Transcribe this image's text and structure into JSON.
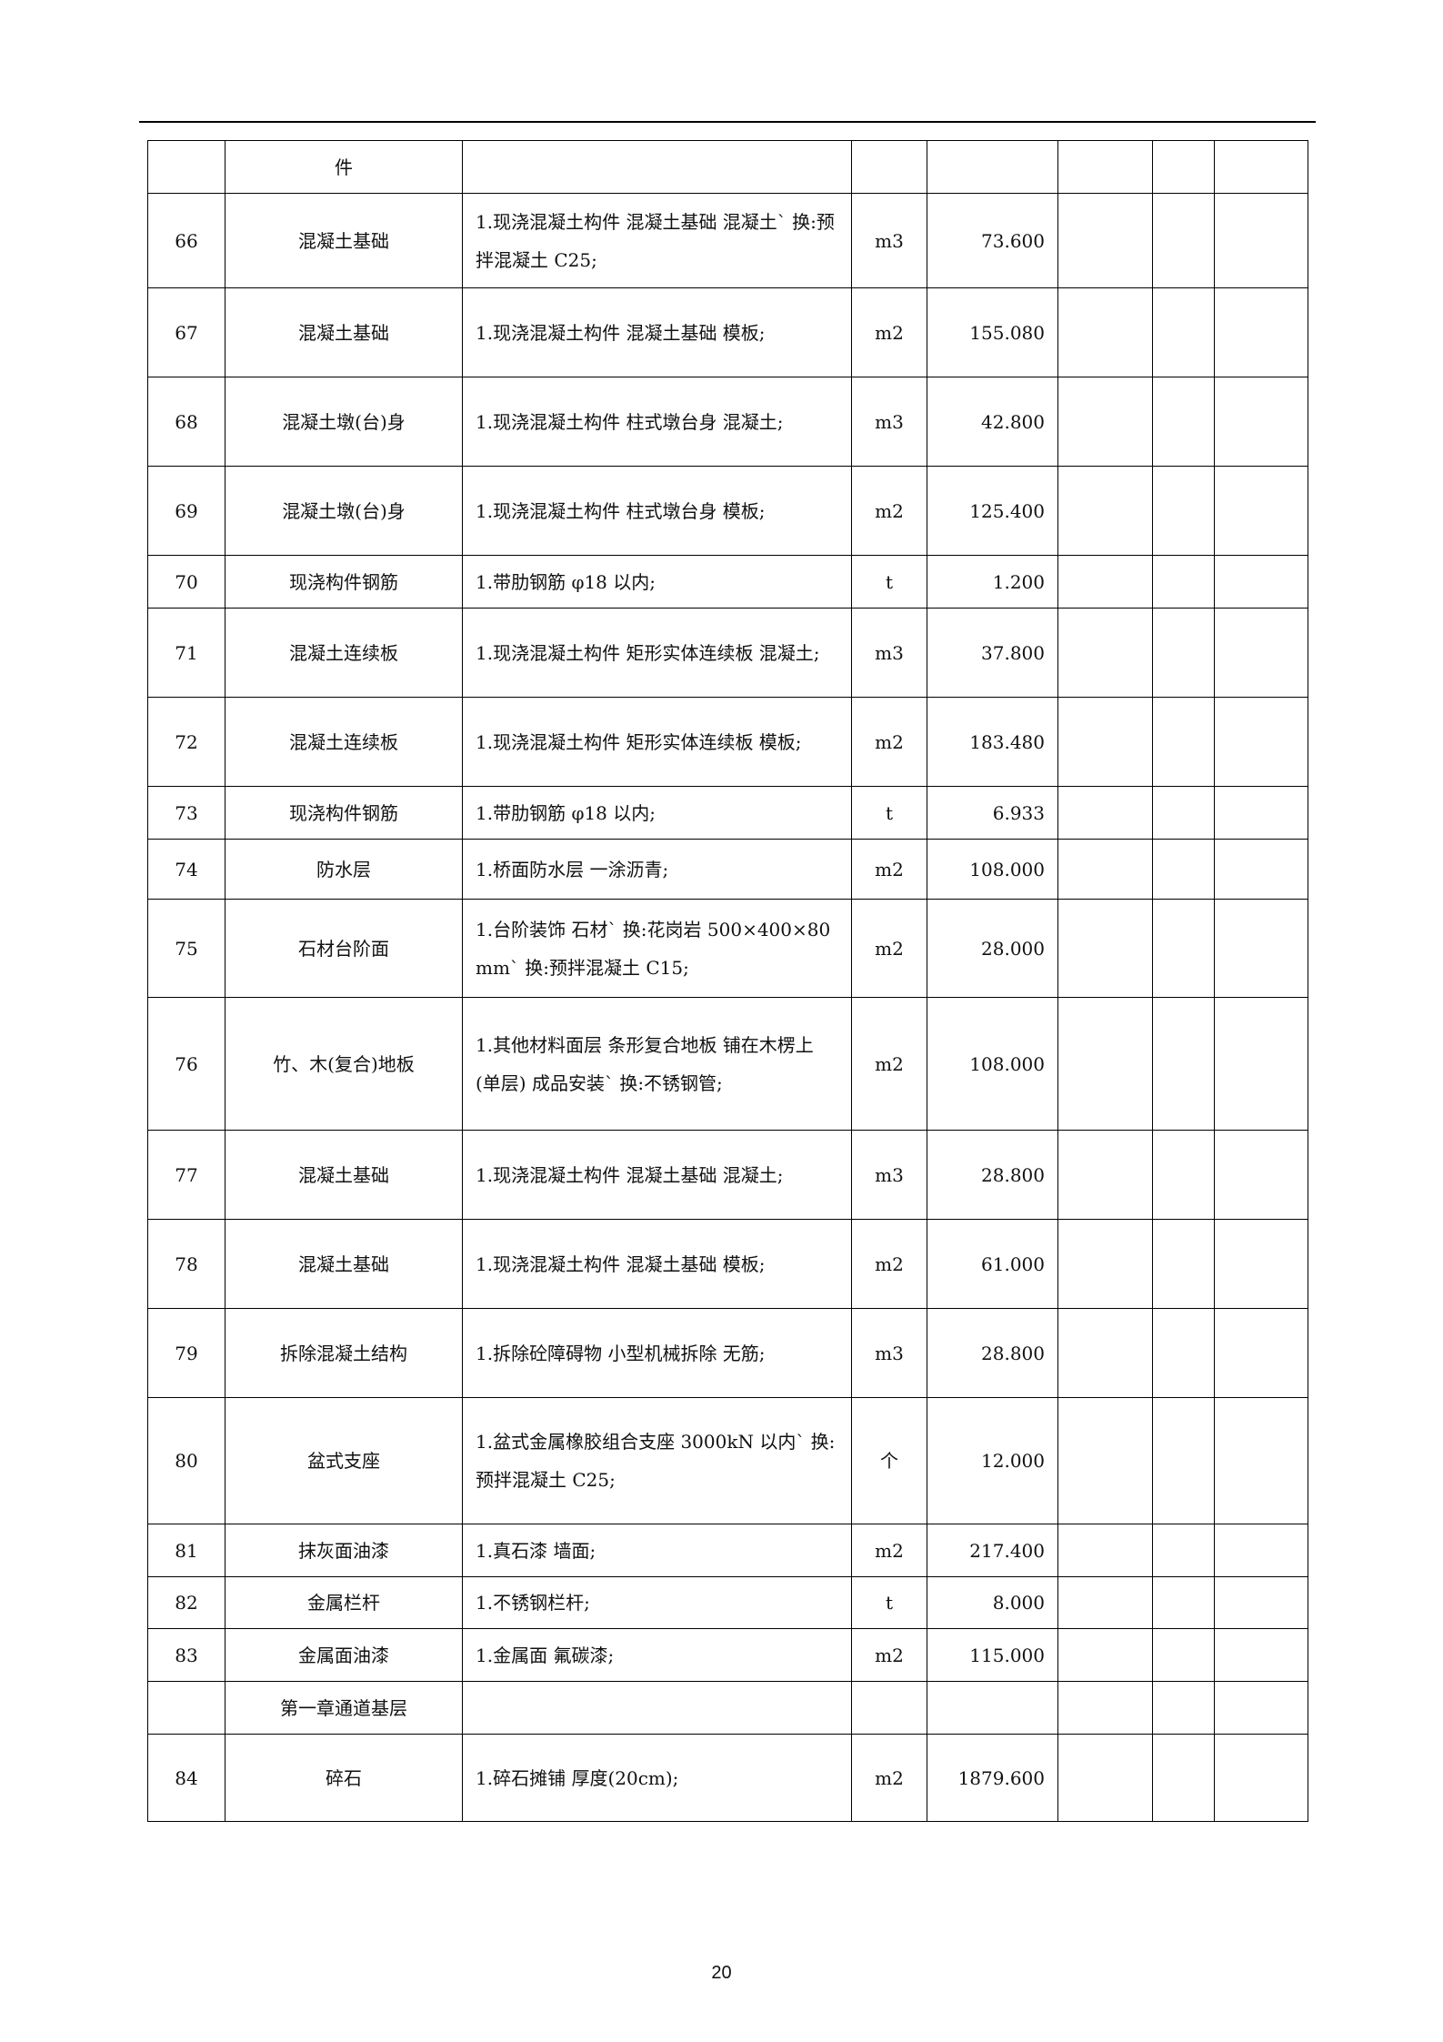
{
  "rows": [
    {
      "no": "",
      "name": "件",
      "desc": "",
      "unit": "",
      "qty": ""
    },
    {
      "no": "66",
      "name": "混凝土基础",
      "desc": "1.现浇混凝土构件 混凝土基础 混凝土` 换:预拌混凝土 C25;",
      "unit": "m3",
      "qty": "73.600"
    },
    {
      "no": "67",
      "name": "混凝土基础",
      "desc": "1.现浇混凝土构件 混凝土基础 模板;",
      "unit": "m2",
      "qty": "155.080"
    },
    {
      "no": "68",
      "name": "混凝土墩(台)身",
      "desc": "1.现浇混凝土构件 柱式墩台身 混凝土;",
      "unit": "m3",
      "qty": "42.800"
    },
    {
      "no": "69",
      "name": "混凝土墩(台)身",
      "desc": "1.现浇混凝土构件 柱式墩台身 模板;",
      "unit": "m2",
      "qty": "125.400"
    },
    {
      "no": "70",
      "name": "现浇构件钢筋",
      "desc": "1.带肋钢筋 φ18 以内;",
      "unit": "t",
      "qty": "1.200"
    },
    {
      "no": "71",
      "name": "混凝土连续板",
      "desc": "1.现浇混凝土构件 矩形实体连续板 混凝土;",
      "unit": "m3",
      "qty": "37.800"
    },
    {
      "no": "72",
      "name": "混凝土连续板",
      "desc": "1.现浇混凝土构件 矩形实体连续板 模板;",
      "unit": "m2",
      "qty": "183.480"
    },
    {
      "no": "73",
      "name": "现浇构件钢筋",
      "desc": "1.带肋钢筋 φ18 以内;",
      "unit": "t",
      "qty": "6.933"
    },
    {
      "no": "74",
      "name": "防水层",
      "desc": "1.桥面防水层 一涂沥青;",
      "unit": "m2",
      "qty": "108.000"
    },
    {
      "no": "75",
      "name": "石材台阶面",
      "desc": "1.台阶装饰 石材` 换:花岗岩 500×400×80mm` 换:预拌混凝土 C15;",
      "unit": "m2",
      "qty": "28.000"
    },
    {
      "no": "76",
      "name": "竹、木(复合)地板",
      "desc": "1.其他材料面层 条形复合地板 铺在木楞上(单层) 成品安装` 换:不锈钢管;",
      "unit": "m2",
      "qty": "108.000"
    },
    {
      "no": "77",
      "name": "混凝土基础",
      "desc": "1.现浇混凝土构件 混凝土基础 混凝土;",
      "unit": "m3",
      "qty": "28.800"
    },
    {
      "no": "78",
      "name": "混凝土基础",
      "desc": "1.现浇混凝土构件 混凝土基础 模板;",
      "unit": "m2",
      "qty": "61.000"
    },
    {
      "no": "79",
      "name": "拆除混凝土结构",
      "desc": "1.拆除砼障碍物 小型机械拆除 无筋;",
      "unit": "m3",
      "qty": "28.800"
    },
    {
      "no": "80",
      "name": "盆式支座",
      "desc": "1.盆式金属橡胶组合支座 3000kN 以内` 换:预拌混凝土 C25;",
      "unit": "个",
      "qty": "12.000"
    },
    {
      "no": "81",
      "name": "抹灰面油漆",
      "desc": "1.真石漆 墙面;",
      "unit": "m2",
      "qty": "217.400"
    },
    {
      "no": "82",
      "name": "金属栏杆",
      "desc": "1.不锈钢栏杆;",
      "unit": "t",
      "qty": "8.000"
    },
    {
      "no": "83",
      "name": "金属面油漆",
      "desc": "1.金属面 氟碳漆;",
      "unit": "m2",
      "qty": "115.000"
    },
    {
      "no": "",
      "name": "第一章通道基层",
      "desc": "",
      "unit": "",
      "qty": ""
    },
    {
      "no": "84",
      "name": "碎石",
      "desc": "1.碎石摊铺 厚度(20cm);",
      "unit": "m2",
      "qty": "1879.600"
    }
  ],
  "page_number": "20"
}
